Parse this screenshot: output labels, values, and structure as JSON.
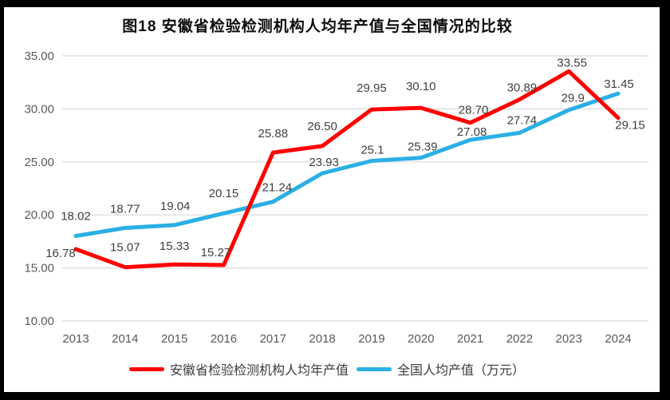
{
  "title": "图18 安徽省检验检测机构人均年产值与全国情况的比较",
  "colors": {
    "anhui_line": "#FE0000",
    "national_line": "#2BAFE4",
    "gridline": "#D9D9D9",
    "axis_text": "#595959",
    "data_label_text": "#404040",
    "frame": "#000000",
    "plot_background": "#FFFFFF"
  },
  "chart_data": {
    "type": "line",
    "title": "图18 安徽省检验检测机构人均年产值与全国情况的比较",
    "categories": [
      "2013",
      "2014",
      "2015",
      "2016",
      "2017",
      "2018",
      "2019",
      "2020",
      "2021",
      "2022",
      "2023",
      "2024"
    ],
    "y_axis": {
      "min": 10,
      "max": 35,
      "step": 5,
      "tick_labels": [
        "10.00",
        "15.00",
        "20.00",
        "25.00",
        "30.00",
        "35.00"
      ]
    },
    "grid": true,
    "legend_position": "bottom",
    "series": [
      {
        "name": "安徽省检验检测机构人均年产值",
        "color": "#FE0000",
        "values": [
          16.78,
          15.07,
          15.33,
          15.27,
          25.88,
          26.5,
          29.95,
          30.1,
          28.7,
          30.89,
          33.55,
          29.15
        ],
        "labels": [
          "16.78",
          "15.07",
          "15.33",
          "15.27",
          "25.88",
          "26.50",
          "29.95",
          "30.10",
          "28.70",
          "30.89",
          "33.55",
          "29.15"
        ]
      },
      {
        "name": "全国人均产值（万元）",
        "color": "#2BAFE4",
        "values": [
          18.02,
          18.77,
          19.04,
          20.15,
          21.24,
          23.93,
          25.1,
          25.39,
          27.08,
          27.74,
          29.9,
          31.45
        ],
        "labels": [
          "18.02",
          "18.77",
          "19.04",
          "20.15",
          "21.24",
          "23.93",
          "25.1",
          "25.39",
          "27.08",
          "27.74",
          "29.9",
          "31.45"
        ]
      }
    ]
  }
}
